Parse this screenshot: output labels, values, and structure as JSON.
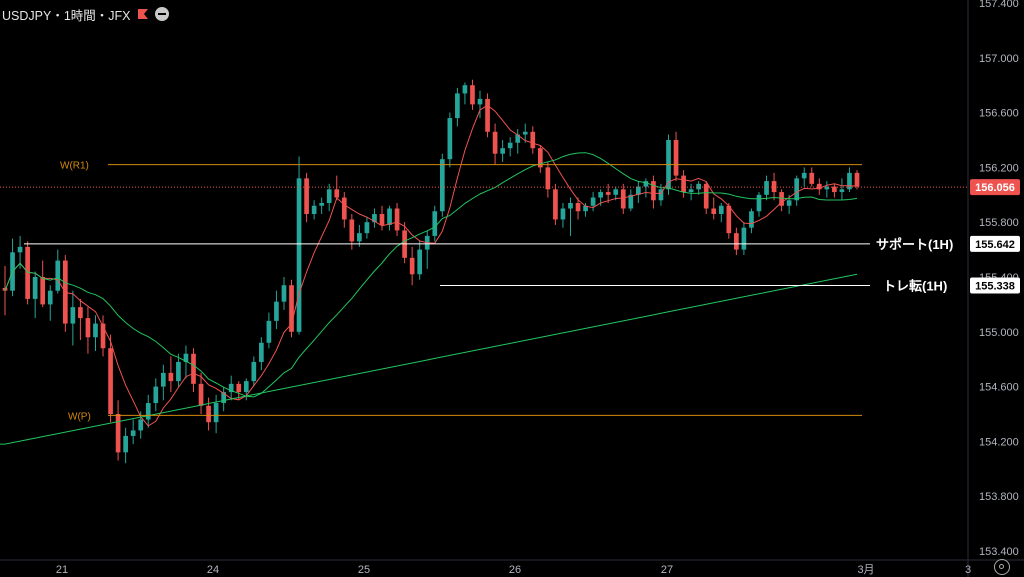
{
  "header": {
    "title": "USDJPY・1時間・JFX"
  },
  "colors": {
    "up": "#26a69a",
    "down": "#ef5350",
    "ma_fast": "#ef5350",
    "ma_mid": "#22c55e",
    "ma_slow": "#22c55e",
    "pivot": "#d48a0c",
    "level": "#ffffff"
  },
  "chart_data": {
    "type": "candlestick",
    "y_range": [
      153.3,
      157.5
    ],
    "y_ticks": [
      "157.400",
      "157.000",
      "156.600",
      "156.200",
      "155.800",
      "155.400",
      "155.000",
      "154.600",
      "154.200",
      "153.800",
      "153.400"
    ],
    "x_ticks": [
      "21",
      "24",
      "25",
      "26",
      "27",
      "3月",
      "3"
    ],
    "current_price": "156.056",
    "levels": [
      {
        "name": "W(R1)",
        "value": 156.22
      },
      {
        "name": "W(P)",
        "value": 154.39
      },
      {
        "name": "サポート(1H)",
        "value": 155.642
      },
      {
        "name": "トレ転(1H)",
        "value": 155.338
      }
    ],
    "candles": [
      [
        155.32,
        155.48,
        155.12,
        155.3
      ],
      [
        155.3,
        155.68,
        155.26,
        155.58
      ],
      [
        155.58,
        155.7,
        155.46,
        155.62
      ],
      [
        155.62,
        155.66,
        155.2,
        155.24
      ],
      [
        155.24,
        155.44,
        155.1,
        155.4
      ],
      [
        155.4,
        155.52,
        155.18,
        155.2
      ],
      [
        155.2,
        155.34,
        155.08,
        155.3
      ],
      [
        155.3,
        155.6,
        155.28,
        155.52
      ],
      [
        155.52,
        155.56,
        155.0,
        155.06
      ],
      [
        155.06,
        155.3,
        154.9,
        155.18
      ],
      [
        155.18,
        155.24,
        154.94,
        155.1
      ],
      [
        155.1,
        155.18,
        154.84,
        154.96
      ],
      [
        154.96,
        155.12,
        154.86,
        155.06
      ],
      [
        155.06,
        155.12,
        154.82,
        154.88
      ],
      [
        154.88,
        154.98,
        154.34,
        154.4
      ],
      [
        154.4,
        154.5,
        154.06,
        154.12
      ],
      [
        154.12,
        154.3,
        154.04,
        154.24
      ],
      [
        154.24,
        154.36,
        154.18,
        154.28
      ],
      [
        154.28,
        154.42,
        154.22,
        154.36
      ],
      [
        154.36,
        154.54,
        154.3,
        154.48
      ],
      [
        154.48,
        154.66,
        154.42,
        154.6
      ],
      [
        154.6,
        154.76,
        154.5,
        154.7
      ],
      [
        154.7,
        154.82,
        154.56,
        154.64
      ],
      [
        154.64,
        154.84,
        154.6,
        154.78
      ],
      [
        154.78,
        154.9,
        154.66,
        154.84
      ],
      [
        154.84,
        154.88,
        154.56,
        154.62
      ],
      [
        154.62,
        154.7,
        154.4,
        154.46
      ],
      [
        154.46,
        154.52,
        154.28,
        154.34
      ],
      [
        154.34,
        154.54,
        154.26,
        154.48
      ],
      [
        154.48,
        154.6,
        154.42,
        154.56
      ],
      [
        154.56,
        154.68,
        154.5,
        154.62
      ],
      [
        154.62,
        154.64,
        154.5,
        154.56
      ],
      [
        154.56,
        154.66,
        154.5,
        154.64
      ],
      [
        154.64,
        154.82,
        154.6,
        154.78
      ],
      [
        154.78,
        154.96,
        154.72,
        154.92
      ],
      [
        154.92,
        155.14,
        154.88,
        155.08
      ],
      [
        155.08,
        155.3,
        155.02,
        155.22
      ],
      [
        155.22,
        155.4,
        155.16,
        155.34
      ],
      [
        155.34,
        155.38,
        154.96,
        155.0
      ],
      [
        155.0,
        156.28,
        154.98,
        156.12
      ],
      [
        156.12,
        156.16,
        155.8,
        155.86
      ],
      [
        155.86,
        155.96,
        155.82,
        155.92
      ],
      [
        155.92,
        155.98,
        155.86,
        155.94
      ],
      [
        155.94,
        156.08,
        155.88,
        156.04
      ],
      [
        156.04,
        156.14,
        155.96,
        155.98
      ],
      [
        155.98,
        156.02,
        155.76,
        155.82
      ],
      [
        155.82,
        155.86,
        155.6,
        155.66
      ],
      [
        155.66,
        155.78,
        155.62,
        155.72
      ],
      [
        155.72,
        155.84,
        155.68,
        155.8
      ],
      [
        155.8,
        155.9,
        155.76,
        155.86
      ],
      [
        155.86,
        155.92,
        155.74,
        155.78
      ],
      [
        155.78,
        155.92,
        155.74,
        155.9
      ],
      [
        155.9,
        155.94,
        155.7,
        155.74
      ],
      [
        155.74,
        155.8,
        155.5,
        155.54
      ],
      [
        155.54,
        155.62,
        155.34,
        155.42
      ],
      [
        155.42,
        155.66,
        155.38,
        155.6
      ],
      [
        155.6,
        155.74,
        155.46,
        155.7
      ],
      [
        155.7,
        155.92,
        155.66,
        155.88
      ],
      [
        155.88,
        156.3,
        155.84,
        156.26
      ],
      [
        156.26,
        156.6,
        156.2,
        156.56
      ],
      [
        156.56,
        156.78,
        156.5,
        156.74
      ],
      [
        156.74,
        156.82,
        156.66,
        156.8
      ],
      [
        156.8,
        156.84,
        156.62,
        156.66
      ],
      [
        156.66,
        156.76,
        156.56,
        156.7
      ],
      [
        156.7,
        156.74,
        156.42,
        156.46
      ],
      [
        156.46,
        156.52,
        156.22,
        156.3
      ],
      [
        156.3,
        156.4,
        156.24,
        156.34
      ],
      [
        156.34,
        156.42,
        156.28,
        156.38
      ],
      [
        156.38,
        156.48,
        156.3,
        156.44
      ],
      [
        156.44,
        156.52,
        156.38,
        156.46
      ],
      [
        156.46,
        156.5,
        156.3,
        156.34
      ],
      [
        156.34,
        156.36,
        156.16,
        156.2
      ],
      [
        156.2,
        156.24,
        155.98,
        156.04
      ],
      [
        156.04,
        156.08,
        155.78,
        155.82
      ],
      [
        155.82,
        155.94,
        155.76,
        155.9
      ],
      [
        155.9,
        155.98,
        155.7,
        155.94
      ],
      [
        155.94,
        155.98,
        155.82,
        155.88
      ],
      [
        155.88,
        155.94,
        155.84,
        155.92
      ],
      [
        155.92,
        156.02,
        155.88,
        155.98
      ],
      [
        155.98,
        156.04,
        155.92,
        156.02
      ],
      [
        156.02,
        156.08,
        155.94,
        156.0
      ],
      [
        156.0,
        156.06,
        155.96,
        156.04
      ],
      [
        156.04,
        156.08,
        155.86,
        155.9
      ],
      [
        155.9,
        156.04,
        155.88,
        156.0
      ],
      [
        156.0,
        156.1,
        155.94,
        156.06
      ],
      [
        156.06,
        156.12,
        155.98,
        156.1
      ],
      [
        156.1,
        156.14,
        155.9,
        155.96
      ],
      [
        155.96,
        156.08,
        155.92,
        156.04
      ],
      [
        156.04,
        156.44,
        156.0,
        156.4
      ],
      [
        156.4,
        156.46,
        156.1,
        156.14
      ],
      [
        156.14,
        156.18,
        155.98,
        156.02
      ],
      [
        156.02,
        156.08,
        155.96,
        156.04
      ],
      [
        156.04,
        156.1,
        156.0,
        156.08
      ],
      [
        156.08,
        156.1,
        155.86,
        155.9
      ],
      [
        155.9,
        155.98,
        155.82,
        155.86
      ],
      [
        155.86,
        155.94,
        155.8,
        155.92
      ],
      [
        155.92,
        155.94,
        155.68,
        155.72
      ],
      [
        155.72,
        155.76,
        155.56,
        155.6
      ],
      [
        155.6,
        155.8,
        155.56,
        155.76
      ],
      [
        155.76,
        155.9,
        155.72,
        155.88
      ],
      [
        155.88,
        156.02,
        155.84,
        156.0
      ],
      [
        156.0,
        156.14,
        155.96,
        156.1
      ],
      [
        156.1,
        156.16,
        155.96,
        156.02
      ],
      [
        156.02,
        156.04,
        155.88,
        155.92
      ],
      [
        155.92,
        156.0,
        155.86,
        155.96
      ],
      [
        155.96,
        156.14,
        155.92,
        156.12
      ],
      [
        156.12,
        156.2,
        156.06,
        156.16
      ],
      [
        156.16,
        156.2,
        156.06,
        156.08
      ],
      [
        156.08,
        156.12,
        156.0,
        156.04
      ],
      [
        156.04,
        156.1,
        155.98,
        156.06
      ],
      [
        156.06,
        156.08,
        155.98,
        156.02
      ],
      [
        156.02,
        156.12,
        155.96,
        156.04
      ],
      [
        156.04,
        156.2,
        156.02,
        156.16
      ],
      [
        156.16,
        156.18,
        156.04,
        156.06
      ]
    ]
  }
}
